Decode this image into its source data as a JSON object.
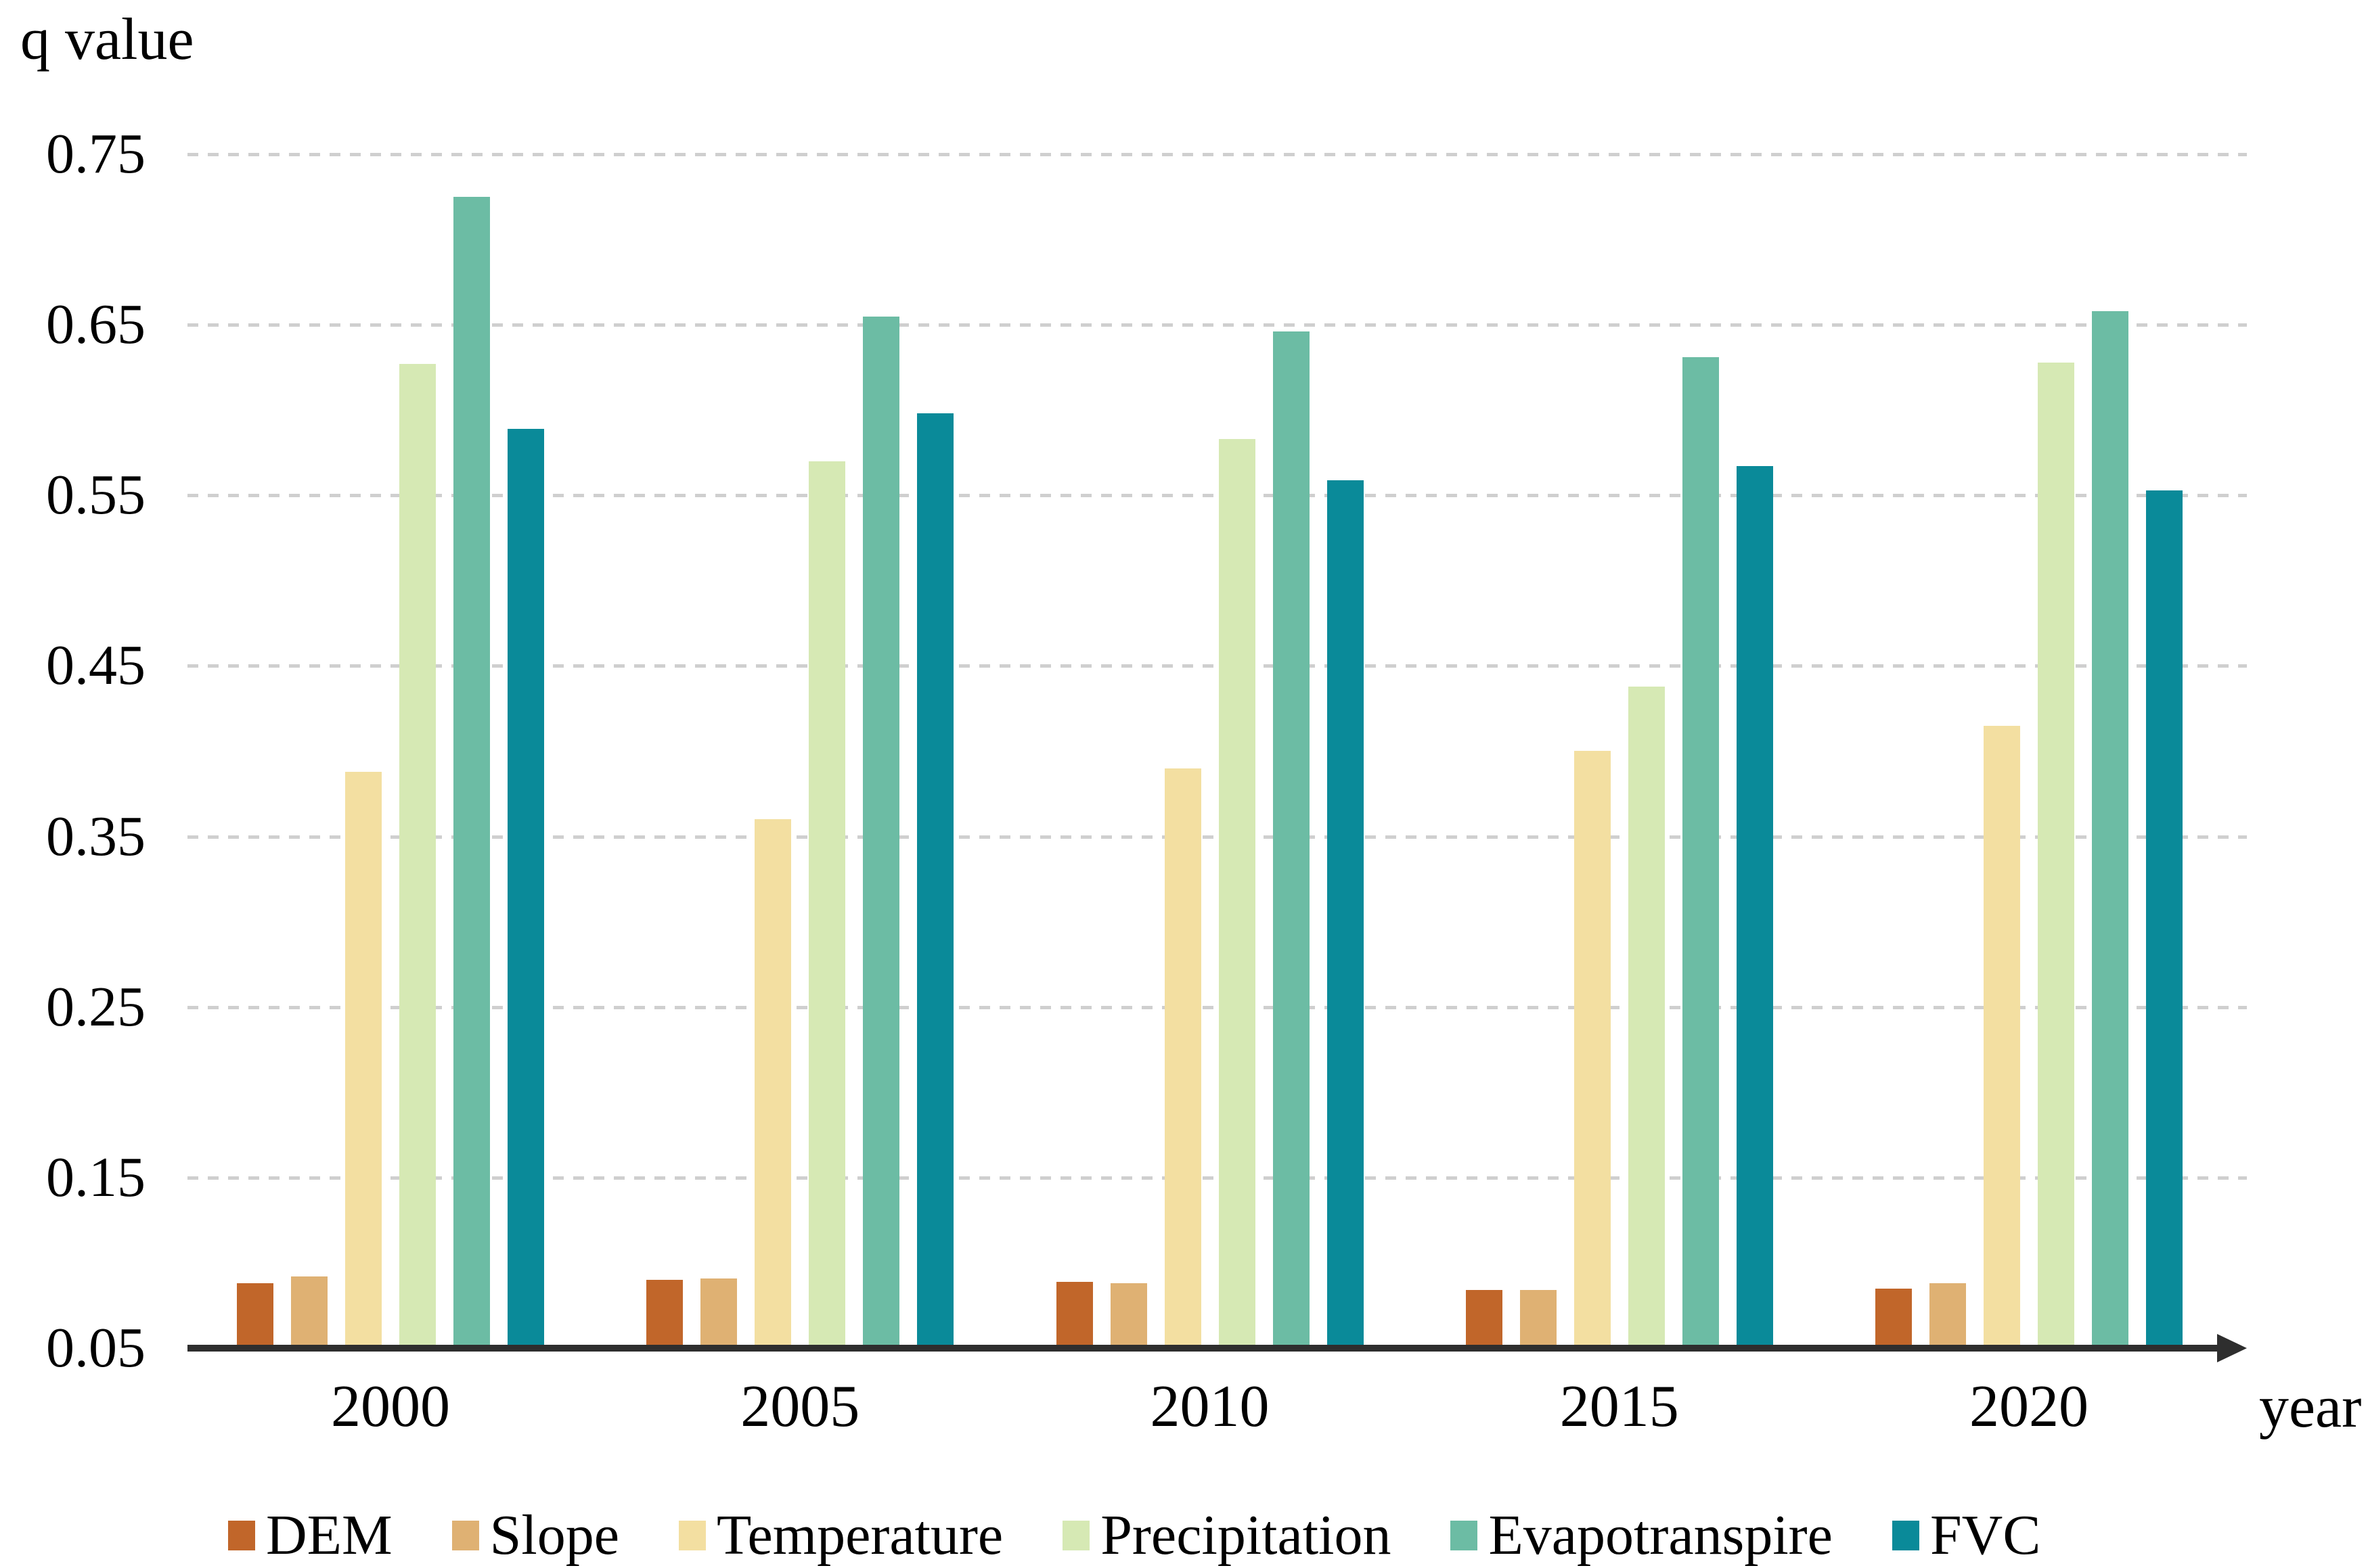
{
  "chart_data": {
    "type": "bar",
    "title": "",
    "ylabel": "q value",
    "xlabel": "year",
    "categories": [
      "2000",
      "2005",
      "2010",
      "2015",
      "2020"
    ],
    "series": [
      {
        "name": "DEM",
        "color": "#c1662a",
        "values": [
          0.088,
          0.09,
          0.089,
          0.084,
          0.085
        ]
      },
      {
        "name": "Slope",
        "color": "#dfb173",
        "values": [
          0.092,
          0.091,
          0.088,
          0.084,
          0.088
        ]
      },
      {
        "name": "Temperature",
        "color": "#f3dfa1",
        "values": [
          0.388,
          0.36,
          0.39,
          0.4,
          0.415
        ]
      },
      {
        "name": "Precipitation",
        "color": "#d6e9b4",
        "values": [
          0.627,
          0.57,
          0.583,
          0.438,
          0.628
        ]
      },
      {
        "name": "Evapotranspire",
        "color": "#6cbca4",
        "values": [
          0.725,
          0.655,
          0.646,
          0.631,
          0.658
        ]
      },
      {
        "name": "FVC",
        "color": "#0a8a99",
        "values": [
          0.589,
          0.598,
          0.559,
          0.567,
          0.553
        ]
      }
    ],
    "y_axis": {
      "min": 0.05,
      "max": 0.75,
      "tick_step": 0.1,
      "tick_labels": [
        "0.05",
        "0.15",
        "0.25",
        "0.35",
        "0.45",
        "0.55",
        "0.65",
        "0.75"
      ],
      "gridlines": "dashed-horizontal"
    },
    "legend_position": "bottom",
    "axis_color": "#2e2e2e",
    "gridline_color": "#cfcfcf"
  }
}
